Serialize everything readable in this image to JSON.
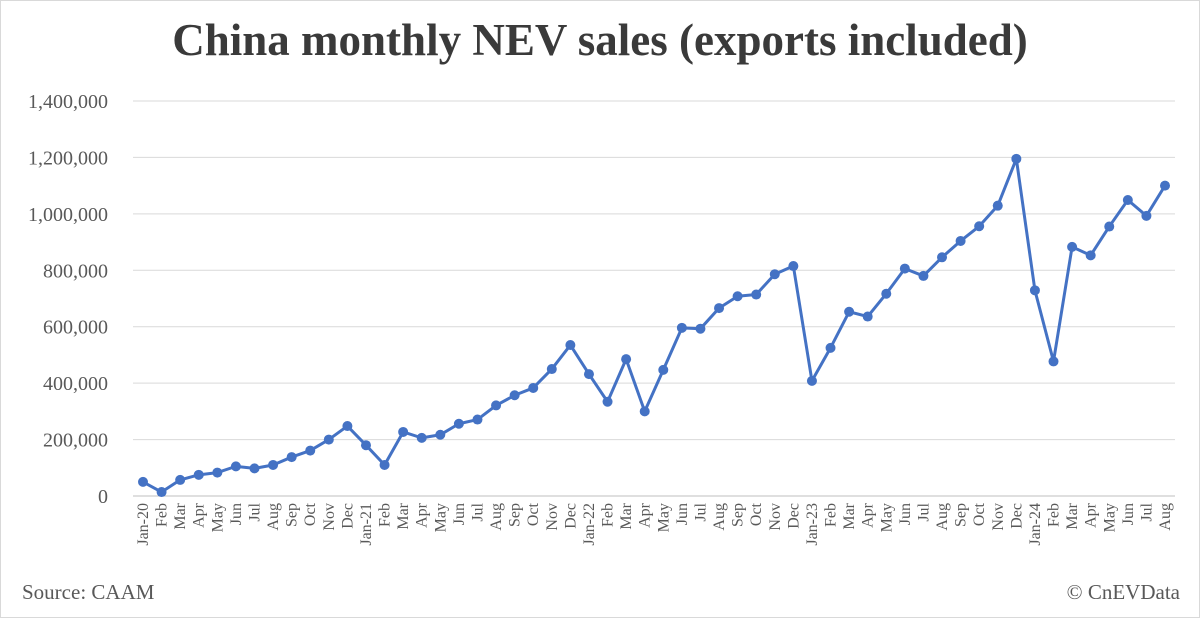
{
  "chart_data": {
    "type": "line",
    "title": "China monthly NEV sales (exports included)",
    "xlabel": "",
    "ylabel": "",
    "ylim": [
      0,
      1400000
    ],
    "yticks": [
      0,
      200000,
      400000,
      600000,
      800000,
      1000000,
      1200000,
      1400000
    ],
    "ytick_labels": [
      "0",
      "200,000",
      "400,000",
      "600,000",
      "800,000",
      "1,000,000",
      "1,200,000",
      "1,400,000"
    ],
    "grid": true,
    "legend": "none",
    "line_color": "#4472c4",
    "categories": [
      "Jan-20",
      "Feb",
      "Mar",
      "Apr",
      "May",
      "Jun",
      "Jul",
      "Aug",
      "Sep",
      "Oct",
      "Nov",
      "Dec",
      "Jan-21",
      "Feb",
      "Mar",
      "Apr",
      "May",
      "Jun",
      "Jul",
      "Aug",
      "Sep",
      "Oct",
      "Nov",
      "Dec",
      "Jan-22",
      "Feb",
      "Mar",
      "Apr",
      "May",
      "Jun",
      "Jul",
      "Aug",
      "Sep",
      "Oct",
      "Nov",
      "Dec",
      "Jan-23",
      "Feb",
      "Mar",
      "Apr",
      "May",
      "Jun",
      "Jul",
      "Aug",
      "Sep",
      "Oct",
      "Nov",
      "Dec",
      "Jan-24",
      "Feb",
      "Mar",
      "Apr",
      "May",
      "Jun",
      "Jul",
      "Aug"
    ],
    "series": [
      {
        "name": "NEV sales",
        "values": [
          50000,
          14000,
          57000,
          75000,
          83000,
          105000,
          98000,
          110000,
          138000,
          161000,
          200000,
          248000,
          180000,
          110000,
          227000,
          206000,
          217000,
          256000,
          271000,
          321000,
          357000,
          383000,
          450000,
          535000,
          432000,
          334000,
          485000,
          300000,
          447000,
          596000,
          593000,
          666000,
          708000,
          714000,
          786000,
          815000,
          408000,
          525000,
          653000,
          636000,
          717000,
          806000,
          780000,
          846000,
          904000,
          956000,
          1029000,
          1195000,
          729000,
          477000,
          883000,
          853000,
          955000,
          1049000,
          993000,
          1100000
        ]
      }
    ]
  },
  "footer": {
    "source": "Source: CAAM",
    "copyright": "© CnEVData"
  }
}
